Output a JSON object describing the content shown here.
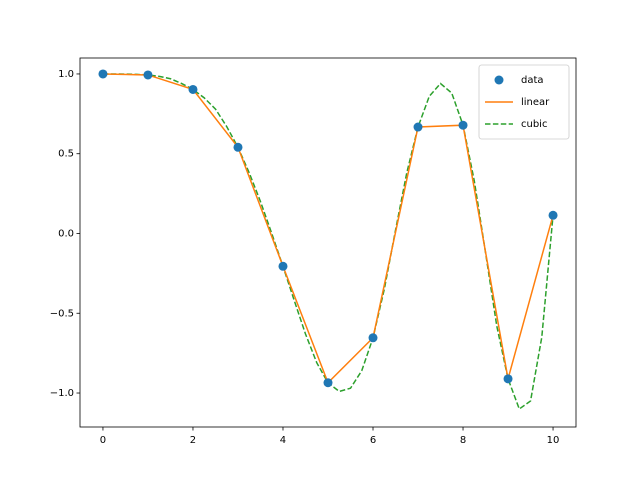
{
  "chart_data": {
    "type": "line",
    "xlim": [
      -0.51,
      10.51
    ],
    "ylim": [
      -1.213,
      1.1
    ],
    "xticks": [
      0,
      2,
      4,
      6,
      8,
      10
    ],
    "yticks": [
      {
        "value": -1.0,
        "label": "−1.0"
      },
      {
        "value": -0.5,
        "label": "−0.5"
      },
      {
        "value": 0.0,
        "label": "0.0"
      },
      {
        "value": 0.5,
        "label": "0.5"
      },
      {
        "value": 1.0,
        "label": "1.0"
      }
    ],
    "legend": "upper right",
    "series": [
      {
        "name": "data",
        "style": "marker",
        "color": "#1f77b4",
        "x": [
          0,
          1,
          2,
          3,
          4,
          5,
          6,
          7,
          8,
          9,
          10
        ],
        "values": [
          1.0,
          0.9938,
          0.9029,
          0.5403,
          -0.2055,
          -0.9355,
          -0.6536,
          0.6673,
          0.6787,
          -0.9111,
          0.1142
        ]
      },
      {
        "name": "linear",
        "style": "solid",
        "color": "#ff7f0e",
        "x": [
          0,
          1,
          2,
          3,
          4,
          5,
          6,
          7,
          8,
          9,
          10
        ],
        "values": [
          1.0,
          0.9938,
          0.9029,
          0.5403,
          -0.2055,
          -0.9355,
          -0.6536,
          0.6673,
          0.6787,
          -0.9111,
          0.1142
        ]
      },
      {
        "name": "cubic",
        "style": "dashed",
        "color": "#2ca02c",
        "x": [
          0,
          0.25,
          0.5,
          0.75,
          1,
          1.25,
          1.5,
          1.75,
          2,
          2.25,
          2.5,
          2.75,
          3,
          3.25,
          3.5,
          3.75,
          4,
          4.25,
          4.5,
          4.75,
          5,
          5.25,
          5.5,
          5.75,
          6,
          6.25,
          6.5,
          6.75,
          7,
          7.25,
          7.5,
          7.75,
          8,
          8.25,
          8.5,
          8.75,
          9,
          9.25,
          9.5,
          9.75,
          10
        ],
        "values": [
          1.0,
          1.0,
          0.999,
          0.997,
          0.994,
          0.985,
          0.97,
          0.94,
          0.903,
          0.85,
          0.78,
          0.67,
          0.54,
          0.38,
          0.2,
          0.0,
          -0.206,
          -0.42,
          -0.63,
          -0.81,
          -0.936,
          -0.99,
          -0.97,
          -0.86,
          -0.654,
          -0.35,
          0.02,
          0.38,
          0.667,
          0.86,
          0.94,
          0.88,
          0.679,
          0.33,
          -0.12,
          -0.58,
          -0.911,
          -1.1,
          -1.05,
          -0.65,
          0.114
        ]
      }
    ]
  }
}
